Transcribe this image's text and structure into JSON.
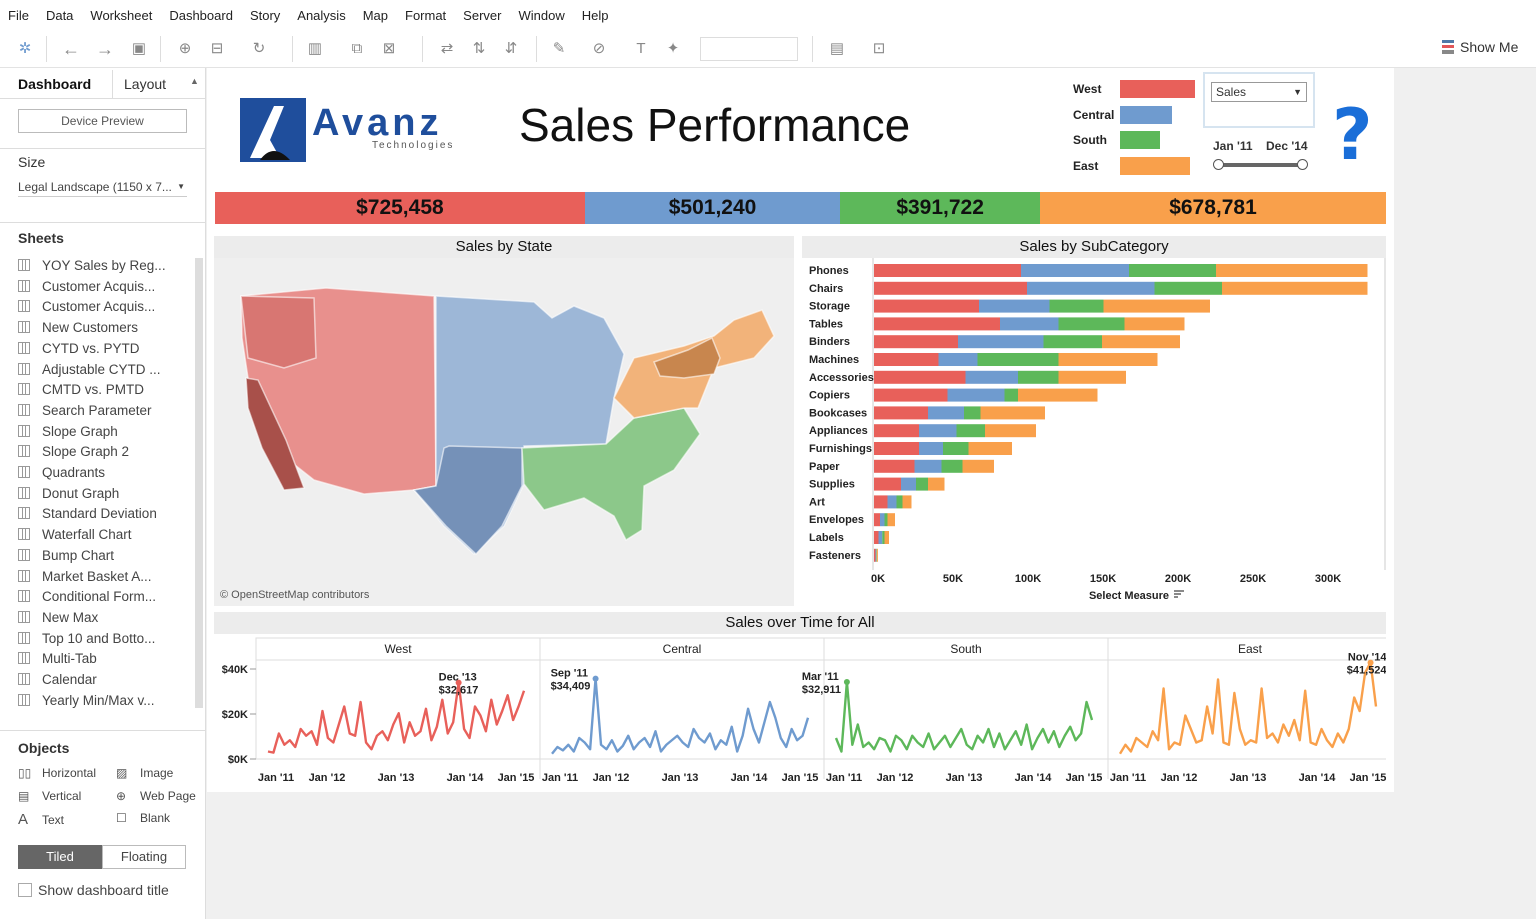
{
  "menu": [
    "File",
    "Data",
    "Worksheet",
    "Dashboard",
    "Story",
    "Analysis",
    "Map",
    "Format",
    "Server",
    "Window",
    "Help"
  ],
  "toolbar": {
    "show_me": "Show Me"
  },
  "left_pane": {
    "tab_dashboard": "Dashboard",
    "tab_layout": "Layout",
    "device_preview": "Device Preview",
    "size_heading": "Size",
    "size_value": "Legal Landscape (1150 x 7...",
    "sheets_heading": "Sheets",
    "sheets": [
      "YOY Sales by Reg...",
      "Customer Acquis...",
      "Customer Acquis...",
      "New Customers",
      "CYTD vs. PYTD",
      "Adjustable CYTD ...",
      "CMTD vs. PMTD",
      "Search Parameter",
      "Slope Graph",
      "Slope Graph 2",
      "Quadrants",
      "Donut Graph",
      "Standard Deviation",
      "Waterfall Chart",
      "Bump Chart",
      "Market Basket A...",
      "Conditional Form...",
      "New Max",
      "Top 10 and Botto...",
      "Multi-Tab",
      "Calendar",
      "Yearly Min/Max v..."
    ],
    "objects_heading": "Objects",
    "objects": {
      "horizontal": "Horizontal",
      "image": "Image",
      "vertical": "Vertical",
      "web_page": "Web Page",
      "text": "Text",
      "blank": "Blank"
    },
    "tiled": "Tiled",
    "floating": "Floating",
    "show_title": "Show dashboard title"
  },
  "dashboard": {
    "logo_text": "Avanz",
    "logo_sub": "Technologies",
    "title": "Sales Performance",
    "legend": [
      {
        "name": "West",
        "color": "#e8605a",
        "value": 725458
      },
      {
        "name": "Central",
        "color": "#6f9bcf",
        "value": 501240
      },
      {
        "name": "South",
        "color": "#5db85a",
        "value": 391722
      },
      {
        "name": "East",
        "color": "#f9a04b",
        "value": 678781
      }
    ],
    "measure_select": "Sales",
    "date_start": "Jan '11",
    "date_end": "Dec '14",
    "help_symbol": "?",
    "kpis": [
      "$725,458",
      "$501,240",
      "$391,722",
      "$678,781"
    ],
    "map_title": "Sales by State",
    "map_credit": "© OpenStreetMap contributors",
    "bar_title": "Sales by SubCategory",
    "bar_xlabel": "Select Measure",
    "line_title": "Sales over Time for All"
  },
  "chart_data": [
    {
      "type": "bar",
      "title": "Sales by SubCategory",
      "xlabel": "Select Measure",
      "stacked": true,
      "orientation": "horizontal",
      "xlim": [
        0,
        340000
      ],
      "xticks": [
        "0K",
        "50K",
        "100K",
        "150K",
        "200K",
        "250K",
        "300K"
      ],
      "categories": [
        "Phones",
        "Chairs",
        "Storage",
        "Tables",
        "Binders",
        "Machines",
        "Accessories",
        "Copiers",
        "Bookcases",
        "Appliances",
        "Furnishings",
        "Paper",
        "Supplies",
        "Art",
        "Envelopes",
        "Labels",
        "Fasteners"
      ],
      "series": [
        {
          "name": "West",
          "color": "#e8605a",
          "values": [
            98000,
            102000,
            70000,
            84000,
            56000,
            43000,
            61000,
            49000,
            36000,
            30000,
            30000,
            27000,
            18000,
            9000,
            4000,
            3000,
            1000
          ]
        },
        {
          "name": "Central",
          "color": "#6f9bcf",
          "values": [
            72000,
            85000,
            47000,
            39000,
            57000,
            26000,
            35000,
            38000,
            24000,
            25000,
            16000,
            18000,
            10000,
            6000,
            3000,
            2500,
            500
          ]
        },
        {
          "name": "South",
          "color": "#5db85a",
          "values": [
            58000,
            45000,
            36000,
            44000,
            39000,
            54000,
            27000,
            9000,
            11000,
            19000,
            17000,
            14000,
            8000,
            4000,
            2000,
            1500,
            400
          ]
        },
        {
          "name": "East",
          "color": "#f9a04b",
          "values": [
            101000,
            97000,
            71000,
            40000,
            52000,
            66000,
            45000,
            53000,
            43000,
            34000,
            29000,
            21000,
            11000,
            6000,
            5000,
            3000,
            700
          ]
        }
      ]
    },
    {
      "type": "line",
      "title": "Sales over Time for All",
      "ylim": [
        0,
        44000
      ],
      "yticks": [
        "$0K",
        "$20K",
        "$40K"
      ],
      "xticks": [
        "Jan '11",
        "Jan '12",
        "Jan '13",
        "Jan '14",
        "Jan '15"
      ],
      "series": [
        {
          "name": "West",
          "color": "#e8605a",
          "max_label": "Dec '13",
          "max_value": "$32,617",
          "max_index": 35,
          "values": [
            2000,
            1500,
            10000,
            5000,
            7000,
            4000,
            12000,
            9000,
            11000,
            5000,
            20000,
            8000,
            6000,
            14000,
            22000,
            10000,
            9000,
            24000,
            6000,
            3000,
            9000,
            11000,
            7000,
            14000,
            19000,
            6000,
            15000,
            9000,
            11000,
            21000,
            7000,
            13000,
            25000,
            10000,
            15000,
            32617,
            12000,
            8000,
            22000,
            18000,
            11000,
            25000,
            14000,
            20000,
            27000,
            16000,
            22000,
            29000
          ]
        },
        {
          "name": "Central",
          "color": "#6f9bcf",
          "max_label": "Sep '11",
          "max_value": "$34,409",
          "max_index": 8,
          "values": [
            1000,
            4000,
            2500,
            5000,
            2000,
            8000,
            6000,
            3000,
            34409,
            5000,
            3000,
            7000,
            2000,
            4500,
            9000,
            3000,
            6000,
            8000,
            4000,
            11000,
            2000,
            5000,
            7000,
            9000,
            6000,
            4000,
            12000,
            8000,
            6000,
            10000,
            3000,
            7000,
            5000,
            13000,
            2000,
            9000,
            21000,
            12000,
            6000,
            15000,
            24000,
            17000,
            8000,
            4000,
            12000,
            7000,
            9000,
            17000
          ]
        },
        {
          "name": "South",
          "color": "#5db85a",
          "max_label": "Mar '11",
          "max_value": "$32,911",
          "max_index": 2,
          "values": [
            8000,
            2000,
            32911,
            5000,
            14000,
            4000,
            6000,
            3000,
            8000,
            7000,
            2000,
            9000,
            7000,
            3000,
            9000,
            6000,
            4000,
            10000,
            3000,
            6000,
            9000,
            4000,
            8000,
            12000,
            5000,
            3000,
            9000,
            6000,
            12000,
            4000,
            10000,
            3000,
            7000,
            11000,
            5000,
            14000,
            3000,
            8000,
            12000,
            6000,
            11000,
            4000,
            9000,
            13000,
            7000,
            10000,
            24000,
            16000
          ]
        },
        {
          "name": "East",
          "color": "#f9a04b",
          "max_label": "Nov '14",
          "max_value": "$41,524",
          "max_index": 46,
          "values": [
            1000,
            5000,
            2000,
            8000,
            6000,
            4000,
            11000,
            7000,
            30000,
            3000,
            6000,
            5000,
            18000,
            12000,
            6000,
            7000,
            22000,
            10000,
            34000,
            6000,
            5000,
            28000,
            12000,
            5000,
            7000,
            6000,
            30000,
            8000,
            10000,
            6000,
            14000,
            9000,
            16000,
            7000,
            29000,
            6000,
            5000,
            12000,
            7000,
            4000,
            10000,
            6000,
            12000,
            26000,
            20000,
            37000,
            41524,
            22000
          ]
        }
      ]
    }
  ]
}
